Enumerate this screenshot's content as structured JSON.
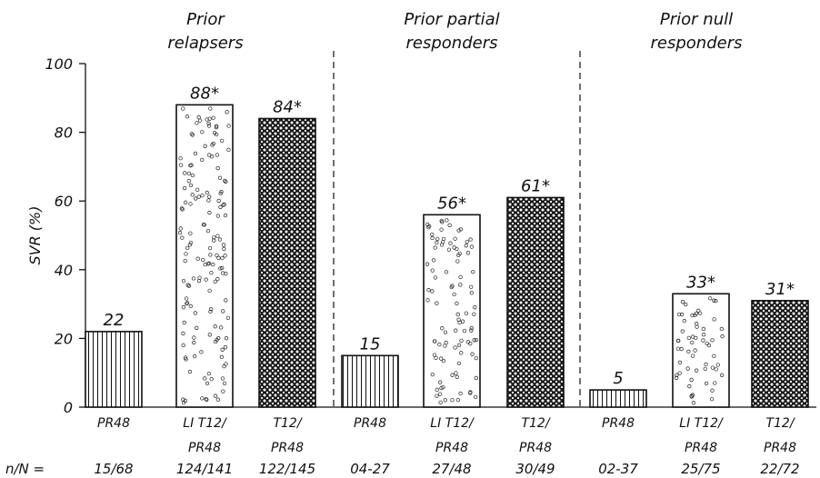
{
  "chart_data": {
    "type": "bar",
    "ylabel": "SVR (%)",
    "ylim": [
      0,
      100
    ],
    "yticks": [
      0,
      20,
      40,
      60,
      80,
      100
    ],
    "grid": false,
    "nN_label": "n/N =",
    "groups": [
      {
        "title_lines": [
          "Prior",
          "relapsers"
        ],
        "bars": [
          {
            "label_lines": [
              "PR48"
            ],
            "value": 22,
            "value_label": "22",
            "nN": "15/68",
            "pattern": "vertical-lines"
          },
          {
            "label_lines": [
              "LI T12/",
              "PR48"
            ],
            "value": 88,
            "value_label": "88*",
            "nN": "124/141",
            "pattern": "sparse-circles"
          },
          {
            "label_lines": [
              "T12/",
              "PR48"
            ],
            "value": 84,
            "value_label": "84*",
            "nN": "122/145",
            "pattern": "dense-circles"
          }
        ]
      },
      {
        "title_lines": [
          "Prior partial",
          "responders"
        ],
        "bars": [
          {
            "label_lines": [
              "PR48"
            ],
            "value": 15,
            "value_label": "15",
            "nN": "04-27",
            "pattern": "vertical-lines"
          },
          {
            "label_lines": [
              "LI T12/",
              "PR48"
            ],
            "value": 56,
            "value_label": "56*",
            "nN": "27/48",
            "pattern": "sparse-circles"
          },
          {
            "label_lines": [
              "T12/",
              "PR48"
            ],
            "value": 61,
            "value_label": "61*",
            "nN": "30/49",
            "pattern": "dense-circles"
          }
        ]
      },
      {
        "title_lines": [
          "Prior null",
          "responders"
        ],
        "bars": [
          {
            "label_lines": [
              "PR48"
            ],
            "value": 5,
            "value_label": "5",
            "nN": "02-37",
            "pattern": "vertical-lines"
          },
          {
            "label_lines": [
              "LI T12/",
              "PR48"
            ],
            "value": 33,
            "value_label": "33*",
            "nN": "25/75",
            "pattern": "sparse-circles"
          },
          {
            "label_lines": [
              "T12/",
              "PR48"
            ],
            "value": 31,
            "value_label": "31*",
            "nN": "22/72",
            "pattern": "dense-circles"
          }
        ]
      }
    ]
  }
}
